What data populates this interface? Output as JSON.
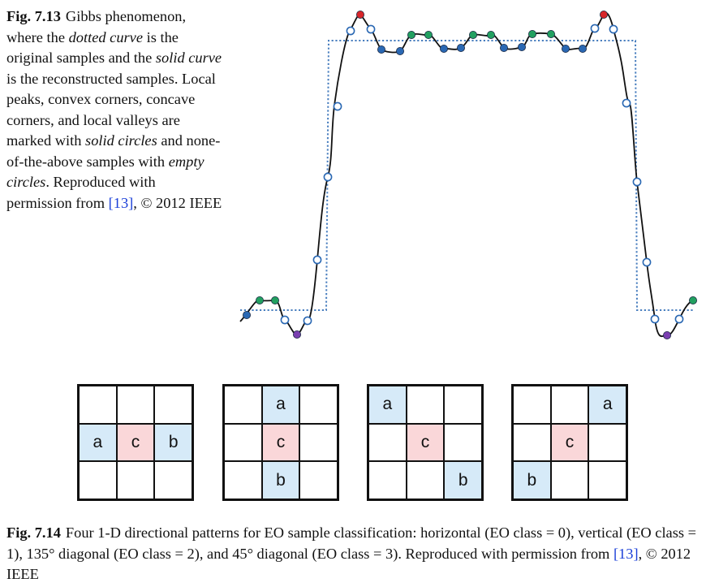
{
  "fig713": {
    "label": "Fig. 7.13",
    "parts": [
      {
        "t": "Gibbs phenomenon, where the ",
        "em": false
      },
      {
        "t": "dotted curve",
        "em": true
      },
      {
        "t": " is the original samples and the ",
        "em": false
      },
      {
        "t": "solid curve",
        "em": true
      },
      {
        "t": " is the reconstructed samples. Local peaks, convex corners, concave corners, and local valleys are marked with ",
        "em": false
      },
      {
        "t": "solid circles",
        "em": true
      },
      {
        "t": " and none-of-the-above samples with ",
        "em": false
      },
      {
        "t": "empty circles",
        "em": true
      },
      {
        "t": ". Reproduced with permission from ",
        "em": false
      }
    ],
    "ref": "[13]",
    "tail": ", © 2012 IEEE"
  },
  "colors": {
    "dotted": "#4a7fbf",
    "curve": "#111111",
    "peak": "#d8262a",
    "convex": "#22a060",
    "concave": "#2a68b3",
    "valley": "#7a3fb0",
    "empty_stroke": "#2a68b3",
    "cell_ab": "#d6eaf8",
    "cell_c": "#fad7d9"
  },
  "patterns": [
    {
      "name": "horizontal",
      "cells": [
        "",
        "",
        "",
        "a",
        "c",
        "b",
        "",
        "",
        ""
      ]
    },
    {
      "name": "vertical",
      "cells": [
        "",
        "a",
        "",
        "",
        "c",
        "",
        "",
        "b",
        ""
      ]
    },
    {
      "name": "diagonal-135",
      "cells": [
        "a",
        "",
        "",
        "",
        "c",
        "",
        "",
        "",
        "b"
      ]
    },
    {
      "name": "diagonal-45",
      "cells": [
        "",
        "",
        "a",
        "",
        "c",
        "",
        "b",
        "",
        ""
      ]
    }
  ],
  "fig714": {
    "label": "Fig. 7.14",
    "text": "Four 1-D directional patterns for EO sample classification: horizontal (EO class = 0), vertical (EO class = 1), 135° diagonal (EO class = 2), and 45° diagonal (EO class = 3). Reproduced with permission from ",
    "ref": "[13]",
    "tail": ", © 2012 IEEE"
  }
}
